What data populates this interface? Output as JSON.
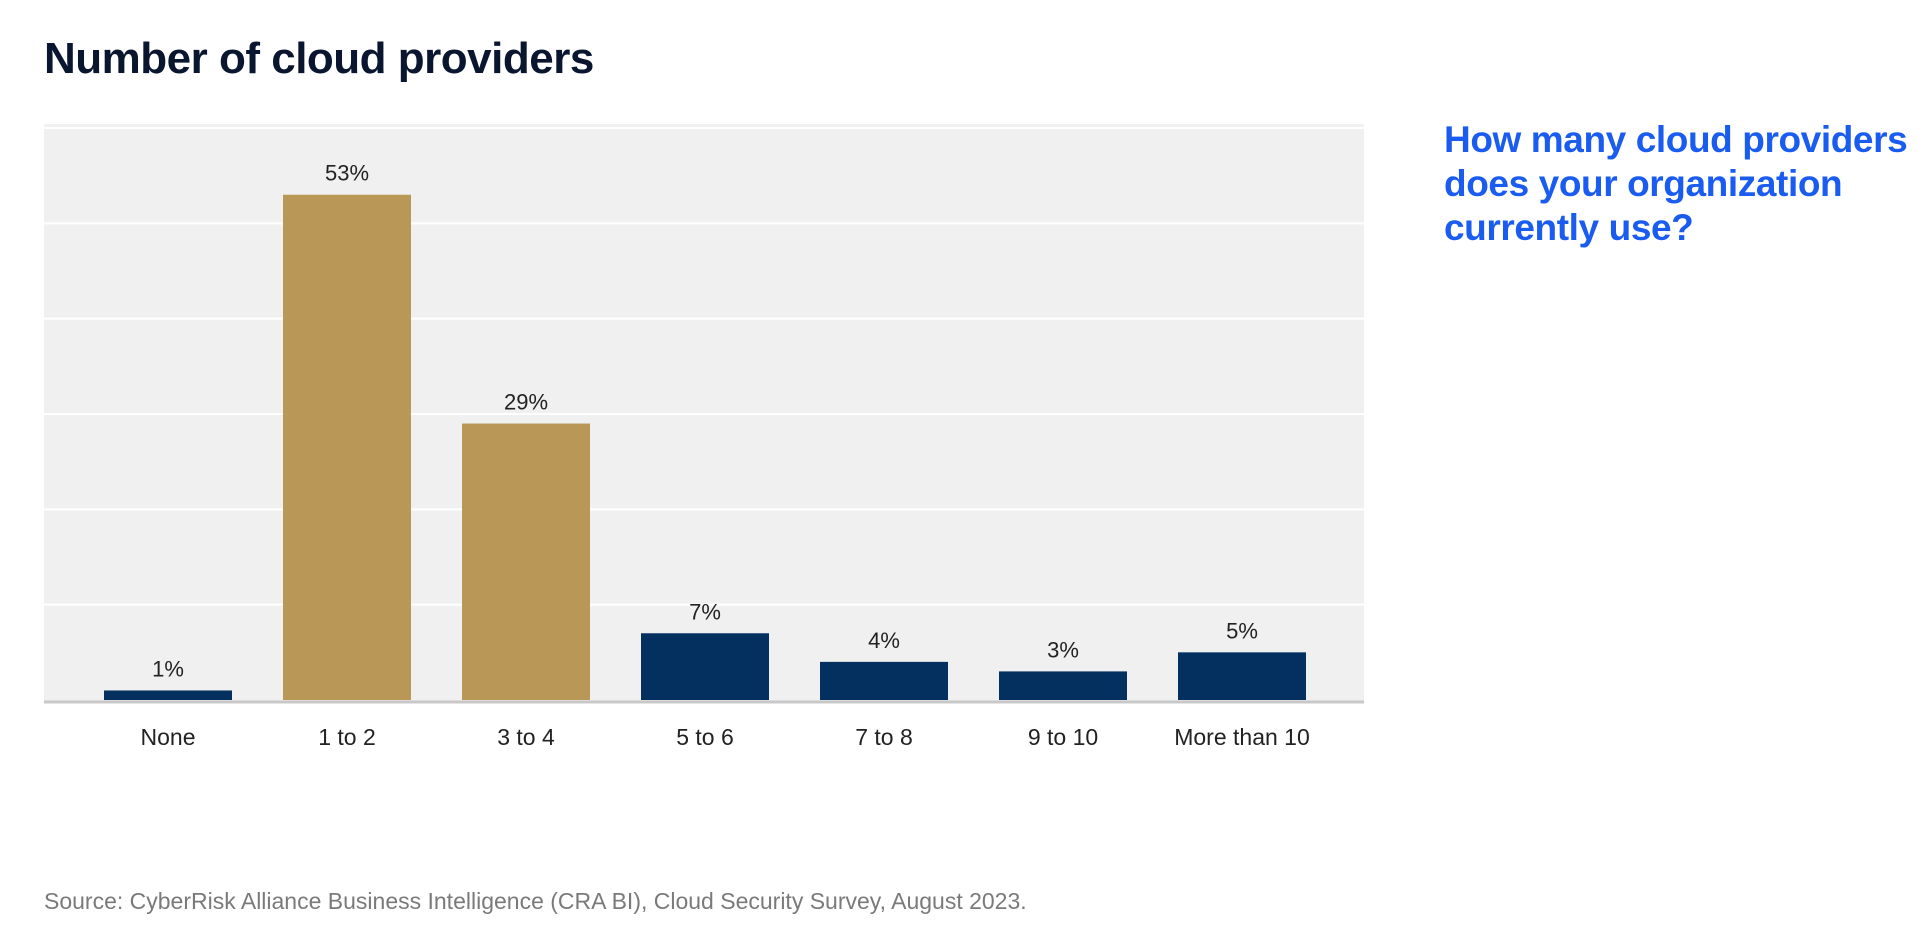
{
  "chart_data": {
    "type": "bar",
    "title": "Number of cloud providers",
    "subtitle": "How many cloud providers does your organization currently use?",
    "categories": [
      "None",
      "1 to 2",
      "3 to 4",
      "5 to 6",
      "7 to 8",
      "9 to 10",
      "More than 10"
    ],
    "values": [
      1,
      53,
      29,
      7,
      4,
      3,
      5
    ],
    "value_labels": [
      "1%",
      "53%",
      "29%",
      "7%",
      "4%",
      "3%",
      "5%"
    ],
    "bar_colors": [
      "#04305f",
      "#b99857",
      "#b99857",
      "#04305f",
      "#04305f",
      "#04305f",
      "#04305f"
    ],
    "xlabel": "",
    "ylabel": "",
    "ylim": [
      0,
      60
    ],
    "grid": true,
    "legend": "none",
    "plot_background": "#f0f0f0"
  },
  "source": "Source: CyberRisk Alliance Business Intelligence (CRA BI), Cloud Security Survey, August 2023."
}
